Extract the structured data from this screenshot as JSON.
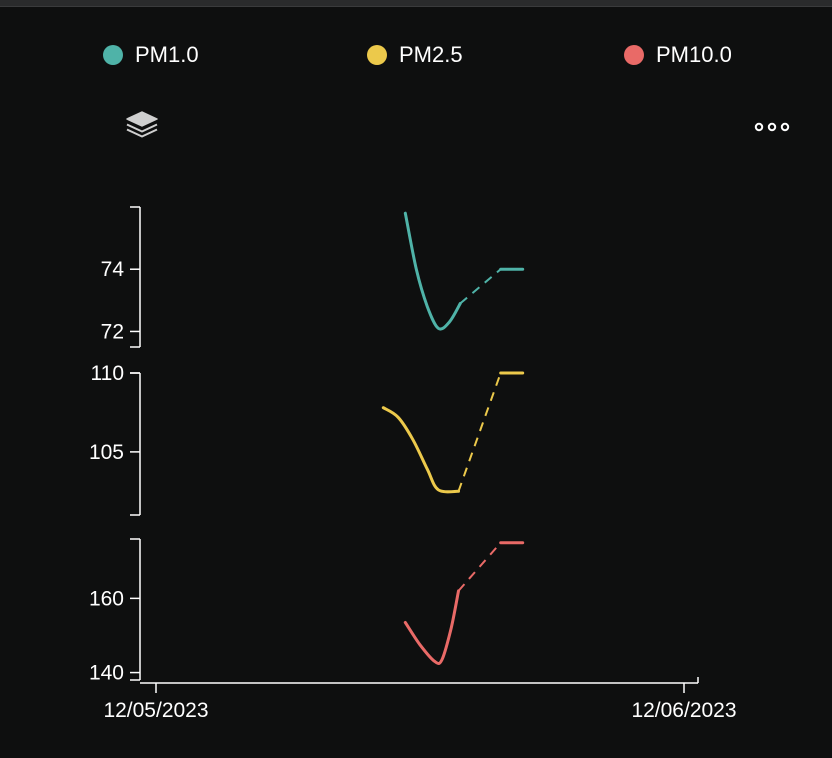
{
  "legend": {
    "items": [
      {
        "label": "PM1.0",
        "color": "#4fb3a8"
      },
      {
        "label": "PM2.5",
        "color": "#ecc94b"
      },
      {
        "label": "PM10.0",
        "color": "#e96a67"
      }
    ]
  },
  "toolbar": {
    "layers_icon": "layers-icon",
    "more_icon": "more-options-icon"
  },
  "chart_data": {
    "type": "line",
    "x_axis": {
      "tick_labels": [
        "12/05/2023",
        "12/06/2023"
      ],
      "range": [
        "2023-12-05T00:00",
        "2023-12-06T00:00"
      ]
    },
    "panels": [
      {
        "series_name": "PM1.0",
        "color": "#4fb3a8",
        "ylim": [
          71.5,
          76
        ],
        "y_ticks": [
          72,
          74
        ],
        "solid": [
          {
            "x": "2023-12-05T11:20",
            "y": 75.8
          },
          {
            "x": "2023-12-05T11:50",
            "y": 74.0
          },
          {
            "x": "2023-12-05T12:20",
            "y": 72.8
          },
          {
            "x": "2023-12-05T12:50",
            "y": 72.1
          },
          {
            "x": "2023-12-05T13:20",
            "y": 72.3
          },
          {
            "x": "2023-12-05T13:50",
            "y": 72.9
          }
        ],
        "dashed": [
          {
            "x": "2023-12-05T13:50",
            "y": 72.9
          },
          {
            "x": "2023-12-05T15:40",
            "y": 74.0
          }
        ],
        "tail": [
          {
            "x": "2023-12-05T15:40",
            "y": 74.0
          },
          {
            "x": "2023-12-05T16:40",
            "y": 74.0
          }
        ]
      },
      {
        "series_name": "PM2.5",
        "color": "#ecc94b",
        "ylim": [
          101,
          110
        ],
        "y_ticks": [
          105,
          110
        ],
        "solid": [
          {
            "x": "2023-12-05T10:20",
            "y": 107.8
          },
          {
            "x": "2023-12-05T11:00",
            "y": 107.2
          },
          {
            "x": "2023-12-05T11:40",
            "y": 105.8
          },
          {
            "x": "2023-12-05T12:20",
            "y": 103.9
          },
          {
            "x": "2023-12-05T12:50",
            "y": 102.6
          },
          {
            "x": "2023-12-05T13:45",
            "y": 102.5
          }
        ],
        "dashed": [
          {
            "x": "2023-12-05T13:45",
            "y": 102.5
          },
          {
            "x": "2023-12-05T15:40",
            "y": 110.0
          }
        ],
        "tail": [
          {
            "x": "2023-12-05T15:40",
            "y": 110.0
          },
          {
            "x": "2023-12-05T16:40",
            "y": 110.0
          }
        ]
      },
      {
        "series_name": "PM10.0",
        "color": "#e96a67",
        "ylim": [
          138,
          176
        ],
        "y_ticks": [
          140,
          160
        ],
        "solid": [
          {
            "x": "2023-12-05T11:20",
            "y": 153.5
          },
          {
            "x": "2023-12-05T12:00",
            "y": 147.5
          },
          {
            "x": "2023-12-05T12:40",
            "y": 143.0
          },
          {
            "x": "2023-12-05T13:00",
            "y": 143.5
          },
          {
            "x": "2023-12-05T13:25",
            "y": 152.0
          },
          {
            "x": "2023-12-05T13:45",
            "y": 162.0
          }
        ],
        "dashed": [
          {
            "x": "2023-12-05T13:45",
            "y": 162.0
          },
          {
            "x": "2023-12-05T15:40",
            "y": 175.0
          }
        ],
        "tail": [
          {
            "x": "2023-12-05T15:40",
            "y": 175.0
          },
          {
            "x": "2023-12-05T16:40",
            "y": 175.0
          }
        ]
      }
    ]
  }
}
